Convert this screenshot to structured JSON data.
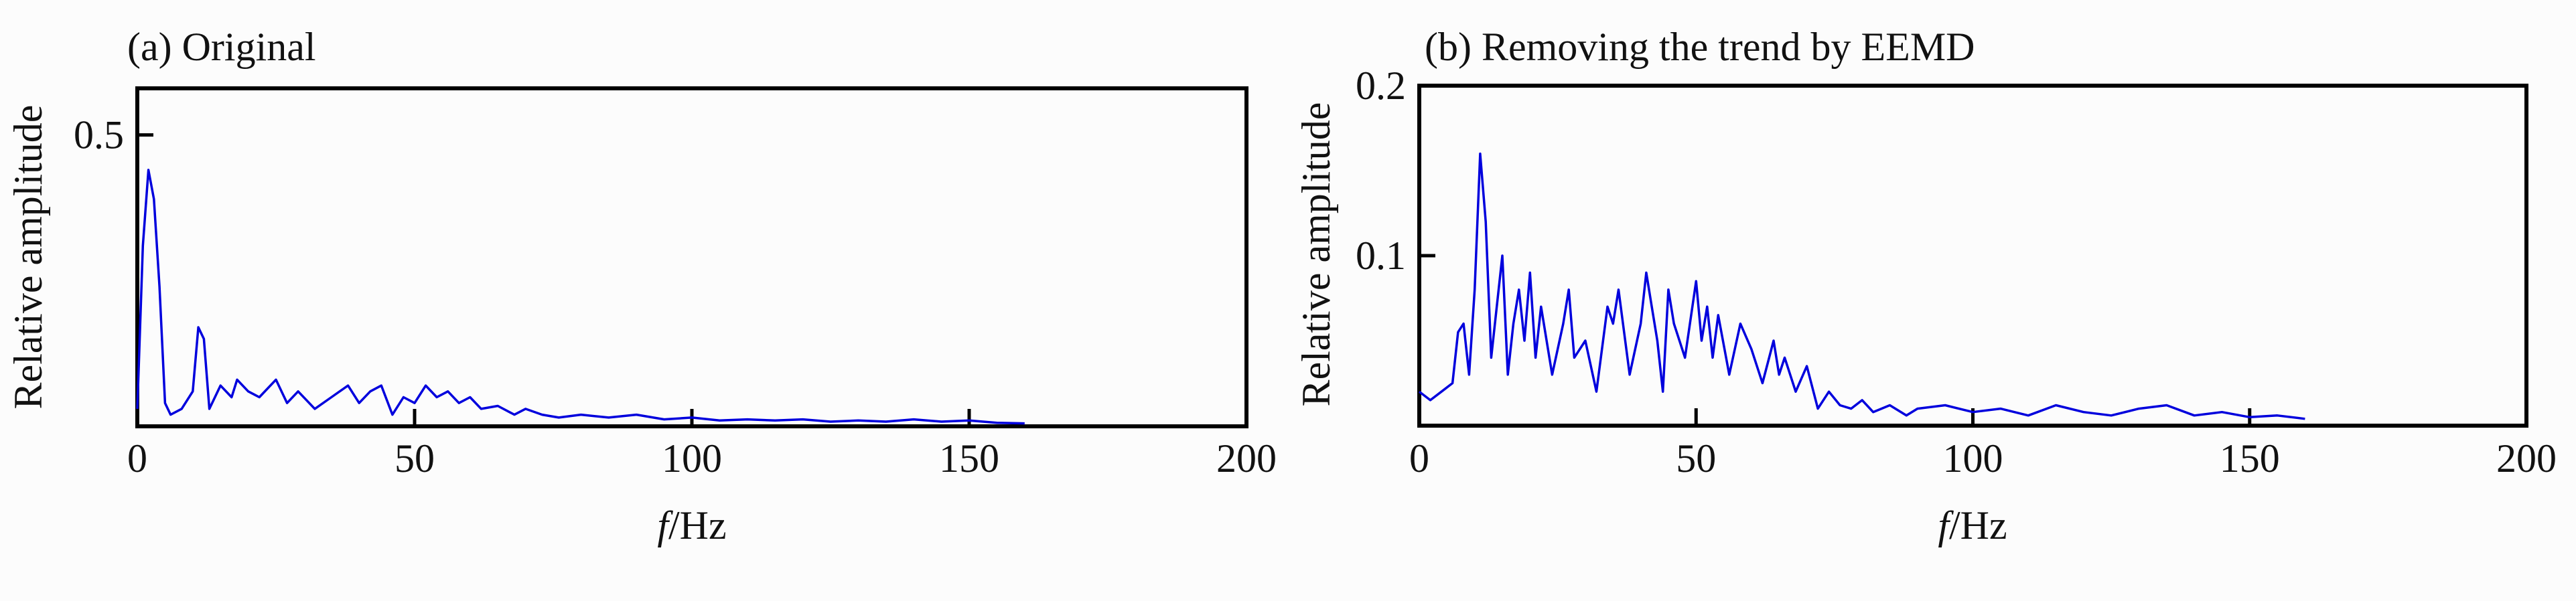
{
  "chart_data": [
    {
      "type": "line",
      "title": "(a) Original",
      "xlabel_italic": "f",
      "xlabel_unit": "/Hz",
      "ylabel": "Relative amplitude",
      "xlim": [
        0,
        200
      ],
      "ylim": [
        0,
        0.58
      ],
      "xticks": [
        "0",
        "50",
        "100",
        "150",
        "200"
      ],
      "yticks": [
        "0.5"
      ],
      "color": "#0000dd",
      "x": [
        0,
        1,
        2,
        3,
        4,
        5,
        6,
        8,
        10,
        11,
        12,
        13,
        15,
        17,
        18,
        20,
        22,
        25,
        27,
        29,
        32,
        35,
        38,
        40,
        42,
        44,
        46,
        48,
        50,
        52,
        54,
        56,
        58,
        60,
        62,
        65,
        68,
        70,
        73,
        76,
        80,
        85,
        90,
        95,
        100,
        105,
        110,
        115,
        120,
        125,
        130,
        135,
        140,
        145,
        150,
        155,
        160
      ],
      "y": [
        0.03,
        0.31,
        0.44,
        0.39,
        0.24,
        0.04,
        0.02,
        0.03,
        0.06,
        0.17,
        0.15,
        0.03,
        0.07,
        0.05,
        0.08,
        0.06,
        0.05,
        0.08,
        0.04,
        0.06,
        0.03,
        0.05,
        0.07,
        0.04,
        0.06,
        0.07,
        0.02,
        0.05,
        0.04,
        0.07,
        0.05,
        0.06,
        0.04,
        0.05,
        0.03,
        0.035,
        0.02,
        0.03,
        0.02,
        0.015,
        0.02,
        0.015,
        0.02,
        0.012,
        0.015,
        0.01,
        0.012,
        0.01,
        0.012,
        0.008,
        0.01,
        0.008,
        0.012,
        0.008,
        0.01,
        0.006,
        0.005
      ]
    },
    {
      "type": "line",
      "title": "(b) Removing the trend by EEMD",
      "xlabel_italic": "f",
      "xlabel_unit": "/Hz",
      "ylabel": "Relative amplitude",
      "xlim": [
        0,
        200
      ],
      "ylim": [
        0,
        0.2
      ],
      "xticks": [
        "0",
        "50",
        "100",
        "150",
        "200"
      ],
      "yticks": [
        "0.1",
        "0.2"
      ],
      "color": "#0000dd",
      "x": [
        0,
        2,
        4,
        6,
        7,
        8,
        9,
        10,
        11,
        12,
        13,
        14,
        15,
        16,
        17,
        18,
        19,
        20,
        21,
        22,
        24,
        26,
        27,
        28,
        30,
        32,
        34,
        35,
        36,
        38,
        40,
        41,
        42,
        43,
        44,
        45,
        46,
        48,
        50,
        51,
        52,
        53,
        54,
        56,
        58,
        60,
        62,
        64,
        65,
        66,
        68,
        70,
        72,
        74,
        76,
        78,
        80,
        82,
        85,
        88,
        90,
        95,
        100,
        105,
        110,
        115,
        120,
        125,
        130,
        135,
        140,
        145,
        150,
        155,
        160
      ],
      "y": [
        0.02,
        0.015,
        0.02,
        0.025,
        0.055,
        0.06,
        0.03,
        0.08,
        0.16,
        0.12,
        0.04,
        0.07,
        0.1,
        0.03,
        0.06,
        0.08,
        0.05,
        0.09,
        0.04,
        0.07,
        0.03,
        0.06,
        0.08,
        0.04,
        0.05,
        0.02,
        0.07,
        0.06,
        0.08,
        0.03,
        0.06,
        0.09,
        0.07,
        0.05,
        0.02,
        0.08,
        0.06,
        0.04,
        0.085,
        0.05,
        0.07,
        0.04,
        0.065,
        0.03,
        0.06,
        0.045,
        0.025,
        0.05,
        0.03,
        0.04,
        0.02,
        0.035,
        0.01,
        0.02,
        0.012,
        0.01,
        0.015,
        0.008,
        0.012,
        0.006,
        0.01,
        0.012,
        0.008,
        0.01,
        0.006,
        0.012,
        0.008,
        0.006,
        0.01,
        0.012,
        0.006,
        0.008,
        0.005,
        0.006,
        0.004
      ]
    }
  ]
}
